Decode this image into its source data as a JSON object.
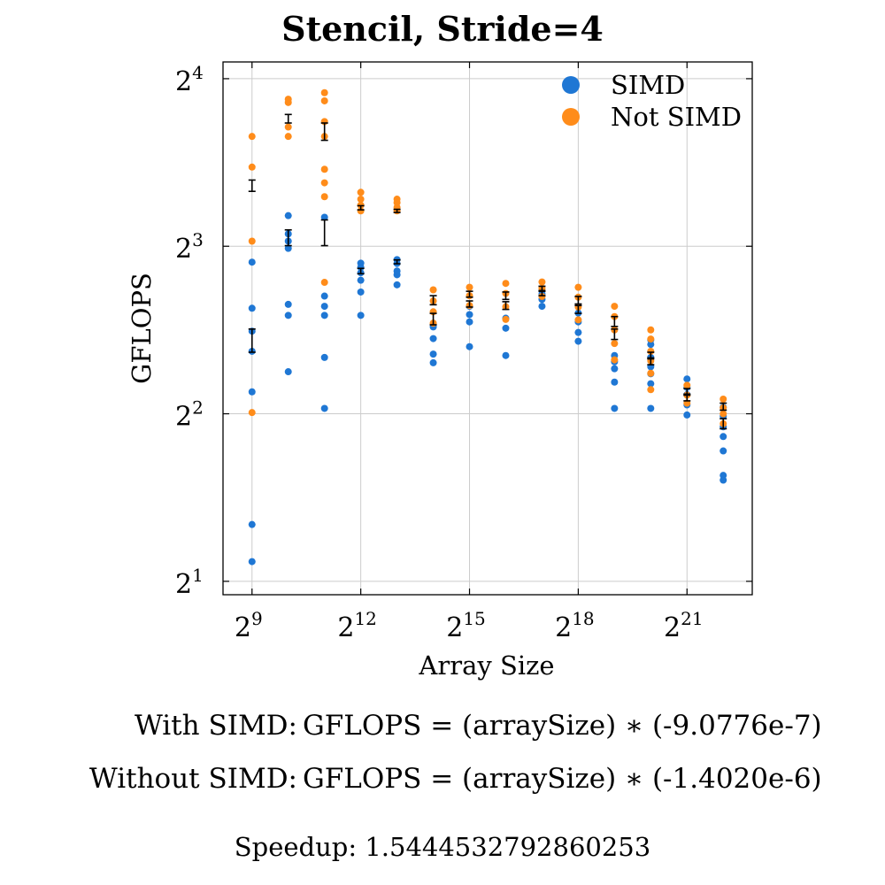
{
  "chart_data": {
    "type": "scatter",
    "title": "Stencil, Stride=4",
    "xlabel": "Array Size",
    "ylabel": "GFLOPS",
    "x_scale": "log2",
    "y_scale": "log2",
    "xlim_log2": [
      8.2,
      22.8
    ],
    "ylim_log2": [
      0.92,
      4.1
    ],
    "x_ticks": [
      {
        "exp": 9,
        "label": "2",
        "sup": "9"
      },
      {
        "exp": 12,
        "label": "2",
        "sup": "12"
      },
      {
        "exp": 15,
        "label": "2",
        "sup": "15"
      },
      {
        "exp": 18,
        "label": "2",
        "sup": "18"
      },
      {
        "exp": 21,
        "label": "2",
        "sup": "21"
      }
    ],
    "y_ticks": [
      {
        "exp": 1,
        "label": "2",
        "sup": "1"
      },
      {
        "exp": 2,
        "label": "2",
        "sup": "2"
      },
      {
        "exp": 3,
        "label": "2",
        "sup": "3"
      },
      {
        "exp": 4,
        "label": "2",
        "sup": "4"
      }
    ],
    "grid": true,
    "legend_position": "top-right",
    "series": [
      {
        "name": "SIMD",
        "color": "#1f77d4",
        "points": [
          {
            "x": 512,
            "y": [
              2.17,
              2.53,
              4.38,
              5.18,
              5.63,
              6.19,
              7.49
            ]
          },
          {
            "x": 1024,
            "y": [
              4.76,
              6.01,
              6.29,
              7.93,
              8.17,
              8.42,
              9.08
            ]
          },
          {
            "x": 2048,
            "y": [
              4.09,
              5.05,
              6.01,
              6.24,
              6.51,
              9.02
            ]
          },
          {
            "x": 4096,
            "y": [
              6.01,
              6.62,
              6.95,
              7.17,
              7.33,
              7.46
            ]
          },
          {
            "x": 8192,
            "y": [
              6.82,
              7.11,
              7.22,
              7.45,
              7.57
            ]
          },
          {
            "x": 16384,
            "y": [
              4.94,
              5.12,
              5.46,
              5.73
            ]
          },
          {
            "x": 32768,
            "y": [
              5.28,
              5.85,
              6.03,
              6.24
            ]
          },
          {
            "x": 65536,
            "y": [
              5.09,
              5.7,
              5.94
            ]
          },
          {
            "x": 131072,
            "y": [
              6.24,
              6.42,
              6.57
            ]
          },
          {
            "x": 262144,
            "y": [
              5.4,
              5.6,
              5.85,
              6.07
            ]
          },
          {
            "x": 524288,
            "y": [
              4.09,
              4.56,
              4.82,
              4.96,
              5.09
            ]
          },
          {
            "x": 1048576,
            "y": [
              4.09,
              4.53,
              4.72,
              4.86,
              5.05,
              5.33,
              5.43
            ]
          },
          {
            "x": 2097152,
            "y": [
              3.98,
              4.15,
              4.33,
              4.46,
              4.62
            ]
          },
          {
            "x": 4194304,
            "y": [
              3.04,
              3.1,
              3.43,
              3.64,
              3.79,
              3.96,
              4.11
            ]
          }
        ]
      },
      {
        "name": "Not SIMD",
        "color": "#ff8c1a",
        "points": [
          {
            "x": 512,
            "y": [
              4.02,
              8.17,
              11.1,
              12.6
            ]
          },
          {
            "x": 1024,
            "y": [
              12.6,
              13.1,
              14.5,
              14.7
            ]
          },
          {
            "x": 2048,
            "y": [
              6.89,
              9.82,
              10.4,
              11.0,
              12.6,
              13.4,
              14.6,
              15.1
            ]
          },
          {
            "x": 4096,
            "y": [
              9.26,
              9.48,
              9.72,
              10.0
            ]
          },
          {
            "x": 8192,
            "y": [
              9.26,
              9.4,
              9.58,
              9.72
            ]
          },
          {
            "x": 16384,
            "y": [
              5.82,
              6.1,
              6.38,
              6.68
            ]
          },
          {
            "x": 32768,
            "y": [
              6.26,
              6.52,
              6.75
            ]
          },
          {
            "x": 65536,
            "y": [
              5.91,
              6.23,
              6.58,
              6.86
            ]
          },
          {
            "x": 131072,
            "y": [
              6.5,
              6.72,
              6.9
            ]
          },
          {
            "x": 262144,
            "y": [
              5.9,
              6.22,
              6.48,
              6.75
            ]
          },
          {
            "x": 524288,
            "y": [
              5.0,
              5.35,
              5.66,
              5.98,
              6.24
            ]
          },
          {
            "x": 1048576,
            "y": [
              4.42,
              4.73,
              4.98,
              5.18,
              5.45,
              5.66
            ]
          },
          {
            "x": 2097152,
            "y": [
              4.18,
              4.32,
              4.5
            ]
          },
          {
            "x": 4194304,
            "y": [
              3.84,
              4.0,
              4.1,
              4.25
            ]
          }
        ]
      }
    ],
    "error_bars": [
      {
        "x": 512,
        "y": 5.4,
        "lo": 5.16,
        "hi": 5.68
      },
      {
        "x": 512,
        "y": 10.28,
        "lo": 10.04,
        "hi": 10.52
      },
      {
        "x": 1024,
        "y": 8.28,
        "lo": 8.02,
        "hi": 8.56
      },
      {
        "x": 1024,
        "y": 13.55,
        "lo": 13.32,
        "hi": 13.8
      },
      {
        "x": 2048,
        "y": 8.47,
        "lo": 8.02,
        "hi": 8.92
      },
      {
        "x": 2048,
        "y": 12.85,
        "lo": 12.4,
        "hi": 13.32
      },
      {
        "x": 4096,
        "y": 7.22,
        "lo": 7.14,
        "hi": 7.3
      },
      {
        "x": 4096,
        "y": 9.38,
        "lo": 9.3,
        "hi": 9.46
      },
      {
        "x": 8192,
        "y": 7.5,
        "lo": 7.44,
        "hi": 7.56
      },
      {
        "x": 8192,
        "y": 9.26,
        "lo": 9.2,
        "hi": 9.32
      },
      {
        "x": 16384,
        "y": 5.92,
        "lo": 5.78,
        "hi": 6.06
      },
      {
        "x": 16384,
        "y": 6.4,
        "lo": 6.28,
        "hi": 6.52
      },
      {
        "x": 32768,
        "y": 6.3,
        "lo": 6.22,
        "hi": 6.38
      },
      {
        "x": 32768,
        "y": 6.56,
        "lo": 6.48,
        "hi": 6.64
      },
      {
        "x": 65536,
        "y": 6.26,
        "lo": 6.16,
        "hi": 6.36
      },
      {
        "x": 65536,
        "y": 6.52,
        "lo": 6.42,
        "hi": 6.62
      },
      {
        "x": 131072,
        "y": 6.58,
        "lo": 6.52,
        "hi": 6.64
      },
      {
        "x": 131072,
        "y": 6.72,
        "lo": 6.66,
        "hi": 6.78
      },
      {
        "x": 262144,
        "y": 6.16,
        "lo": 6.06,
        "hi": 6.26
      },
      {
        "x": 262144,
        "y": 6.4,
        "lo": 6.3,
        "hi": 6.5
      },
      {
        "x": 524288,
        "y": 5.56,
        "lo": 5.44,
        "hi": 5.68
      },
      {
        "x": 524288,
        "y": 5.86,
        "lo": 5.74,
        "hi": 5.98
      },
      {
        "x": 1048576,
        "y": 4.96,
        "lo": 4.9,
        "hi": 5.02
      },
      {
        "x": 1048576,
        "y": 5.1,
        "lo": 5.04,
        "hi": 5.16
      },
      {
        "x": 2097152,
        "y": 4.28,
        "lo": 4.22,
        "hi": 4.34
      },
      {
        "x": 2097152,
        "y": 4.38,
        "lo": 4.32,
        "hi": 4.44
      },
      {
        "x": 4194304,
        "y": 3.84,
        "lo": 3.76,
        "hi": 3.92
      },
      {
        "x": 4194304,
        "y": 4.12,
        "lo": 4.06,
        "hi": 4.18
      }
    ]
  },
  "equations": [
    {
      "label": "With SIMD:",
      "text": "GFLOPS = (arraySize) ∗ (-9.0776e-7)"
    },
    {
      "label": "Without SIMD:",
      "text": "GFLOPS = (arraySize) ∗ (-1.4020e-6)"
    }
  ],
  "speedup_text": "Speedup: 1.5444532792860253"
}
